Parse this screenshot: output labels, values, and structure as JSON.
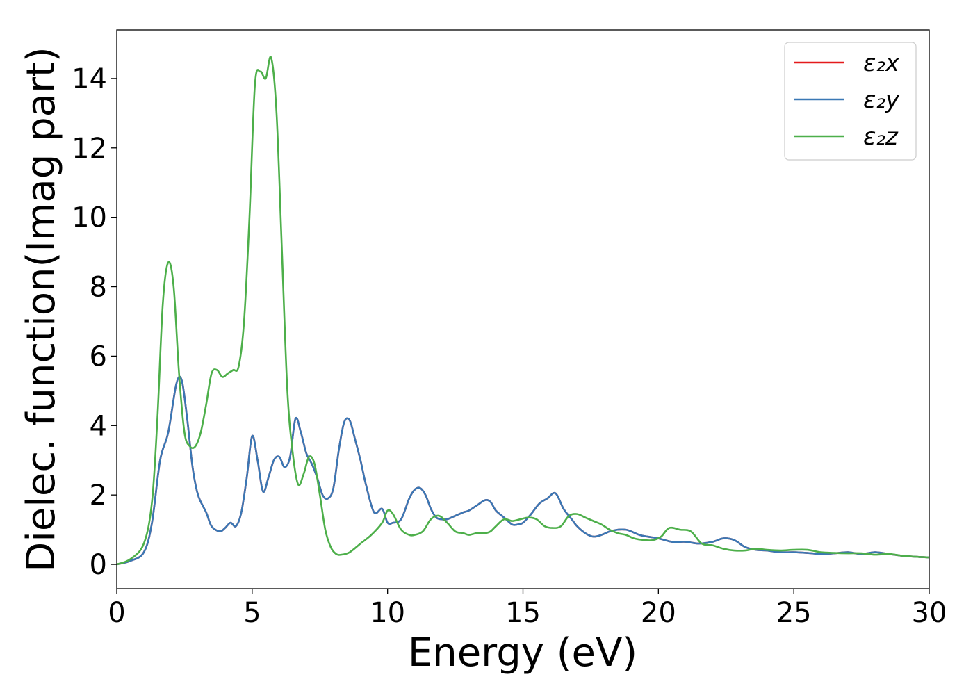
{
  "chart_data": {
    "type": "line",
    "title": "",
    "xlabel": "Energy (eV)",
    "ylabel": "Dielec. function(Imag part)",
    "xlim": [
      0,
      30
    ],
    "ylim": [
      -0.7,
      15.4
    ],
    "xticks": [
      0,
      5,
      10,
      15,
      20,
      25,
      30
    ],
    "yticks": [
      0,
      2,
      4,
      6,
      8,
      10,
      12,
      14
    ],
    "grid": false,
    "legend_position": "top-right",
    "series": [
      {
        "name": "ε₂x",
        "color": "#e41a1c",
        "x": [
          0,
          0.5,
          1.0,
          1.3,
          1.6,
          1.9,
          2.2,
          2.4,
          2.6,
          2.8,
          3.0,
          3.3,
          3.5,
          3.8,
          4.0,
          4.2,
          4.4,
          4.6,
          4.8,
          5.0,
          5.2,
          5.4,
          5.6,
          5.8,
          6.0,
          6.2,
          6.4,
          6.6,
          6.8,
          7.0,
          7.2,
          7.4,
          7.6,
          7.8,
          8.0,
          8.2,
          8.4,
          8.6,
          8.8,
          9.0,
          9.2,
          9.5,
          9.8,
          10.0,
          10.2,
          10.5,
          10.8,
          11.0,
          11.2,
          11.4,
          11.6,
          11.8,
          12.0,
          12.2,
          12.5,
          12.8,
          13.0,
          13.3,
          13.6,
          13.8,
          14.0,
          14.3,
          14.6,
          14.8,
          15.0,
          15.3,
          15.6,
          15.9,
          16.2,
          16.5,
          16.8,
          17.0,
          17.3,
          17.6,
          17.9,
          18.2,
          18.5,
          18.8,
          19.0,
          19.3,
          19.6,
          20.0,
          20.5,
          21.0,
          21.5,
          22.0,
          22.4,
          22.8,
          23.2,
          23.6,
          24.0,
          24.5,
          25.0,
          25.5,
          26.0,
          26.5,
          27.0,
          27.5,
          28.0,
          28.5,
          29.0,
          29.5,
          30.0
        ],
        "y": [
          0,
          0.1,
          0.35,
          1.2,
          3.0,
          3.8,
          5.2,
          5.3,
          4.2,
          2.8,
          2.0,
          1.5,
          1.1,
          0.95,
          1.05,
          1.2,
          1.1,
          1.5,
          2.5,
          3.7,
          3.0,
          2.1,
          2.5,
          3.0,
          3.1,
          2.8,
          3.1,
          4.2,
          3.8,
          3.2,
          2.9,
          2.5,
          2.0,
          1.9,
          2.2,
          3.3,
          4.1,
          4.15,
          3.6,
          3.0,
          2.3,
          1.5,
          1.6,
          1.2,
          1.2,
          1.3,
          1.9,
          2.15,
          2.2,
          2.0,
          1.6,
          1.35,
          1.3,
          1.3,
          1.4,
          1.5,
          1.55,
          1.7,
          1.85,
          1.8,
          1.55,
          1.35,
          1.15,
          1.15,
          1.2,
          1.45,
          1.75,
          1.9,
          2.05,
          1.6,
          1.3,
          1.1,
          0.9,
          0.8,
          0.85,
          0.95,
          1.0,
          1.0,
          0.95,
          0.85,
          0.8,
          0.75,
          0.65,
          0.65,
          0.6,
          0.65,
          0.75,
          0.7,
          0.5,
          0.42,
          0.4,
          0.35,
          0.35,
          0.33,
          0.3,
          0.32,
          0.35,
          0.3,
          0.35,
          0.3,
          0.25,
          0.22,
          0.2
        ]
      },
      {
        "name": "ε₂y",
        "color": "#3a78b5",
        "x": [
          0,
          0.5,
          1.0,
          1.3,
          1.6,
          1.9,
          2.2,
          2.4,
          2.6,
          2.8,
          3.0,
          3.3,
          3.5,
          3.8,
          4.0,
          4.2,
          4.4,
          4.6,
          4.8,
          5.0,
          5.2,
          5.4,
          5.6,
          5.8,
          6.0,
          6.2,
          6.4,
          6.6,
          6.8,
          7.0,
          7.2,
          7.4,
          7.6,
          7.8,
          8.0,
          8.2,
          8.4,
          8.6,
          8.8,
          9.0,
          9.2,
          9.5,
          9.8,
          10.0,
          10.2,
          10.5,
          10.8,
          11.0,
          11.2,
          11.4,
          11.6,
          11.8,
          12.0,
          12.2,
          12.5,
          12.8,
          13.0,
          13.3,
          13.6,
          13.8,
          14.0,
          14.3,
          14.6,
          14.8,
          15.0,
          15.3,
          15.6,
          15.9,
          16.2,
          16.5,
          16.8,
          17.0,
          17.3,
          17.6,
          17.9,
          18.2,
          18.5,
          18.8,
          19.0,
          19.3,
          19.6,
          20.0,
          20.5,
          21.0,
          21.5,
          22.0,
          22.4,
          22.8,
          23.2,
          23.6,
          24.0,
          24.5,
          25.0,
          25.5,
          26.0,
          26.5,
          27.0,
          27.5,
          28.0,
          28.5,
          29.0,
          29.5,
          30.0
        ],
        "y": [
          0,
          0.1,
          0.35,
          1.2,
          3.0,
          3.8,
          5.2,
          5.3,
          4.2,
          2.8,
          2.0,
          1.5,
          1.1,
          0.95,
          1.05,
          1.2,
          1.1,
          1.5,
          2.5,
          3.7,
          3.0,
          2.1,
          2.5,
          3.0,
          3.1,
          2.8,
          3.1,
          4.2,
          3.8,
          3.2,
          2.9,
          2.5,
          2.0,
          1.9,
          2.2,
          3.3,
          4.1,
          4.15,
          3.6,
          3.0,
          2.3,
          1.5,
          1.6,
          1.2,
          1.2,
          1.3,
          1.9,
          2.15,
          2.2,
          2.0,
          1.6,
          1.35,
          1.3,
          1.3,
          1.4,
          1.5,
          1.55,
          1.7,
          1.85,
          1.8,
          1.55,
          1.35,
          1.15,
          1.15,
          1.2,
          1.45,
          1.75,
          1.9,
          2.05,
          1.6,
          1.3,
          1.1,
          0.9,
          0.8,
          0.85,
          0.95,
          1.0,
          1.0,
          0.95,
          0.85,
          0.8,
          0.75,
          0.65,
          0.65,
          0.6,
          0.65,
          0.75,
          0.7,
          0.5,
          0.42,
          0.4,
          0.35,
          0.35,
          0.33,
          0.3,
          0.32,
          0.35,
          0.3,
          0.35,
          0.3,
          0.25,
          0.22,
          0.2
        ]
      },
      {
        "name": "ε₂z",
        "color": "#4daf4a",
        "x": [
          0,
          0.5,
          1.0,
          1.3,
          1.5,
          1.7,
          1.9,
          2.1,
          2.3,
          2.5,
          2.7,
          2.9,
          3.1,
          3.3,
          3.5,
          3.7,
          3.9,
          4.1,
          4.3,
          4.5,
          4.7,
          4.9,
          5.1,
          5.3,
          5.5,
          5.7,
          5.9,
          6.1,
          6.3,
          6.5,
          6.7,
          6.9,
          7.1,
          7.3,
          7.5,
          7.7,
          7.9,
          8.1,
          8.3,
          8.6,
          9.0,
          9.4,
          9.8,
          10.0,
          10.2,
          10.5,
          10.8,
          11.0,
          11.3,
          11.6,
          11.9,
          12.2,
          12.5,
          12.8,
          13.0,
          13.3,
          13.6,
          13.8,
          14.0,
          14.3,
          14.6,
          14.9,
          15.2,
          15.5,
          15.8,
          16.1,
          16.4,
          16.7,
          17.0,
          17.3,
          17.6,
          17.9,
          18.2,
          18.5,
          18.8,
          19.1,
          19.5,
          19.8,
          20.1,
          20.4,
          20.8,
          21.2,
          21.6,
          22.0,
          22.4,
          22.8,
          23.2,
          23.6,
          24.0,
          24.5,
          25.0,
          25.5,
          26.0,
          26.5,
          27.0,
          27.5,
          28.0,
          28.5,
          29.0,
          29.5,
          30.0
        ],
        "y": [
          0,
          0.15,
          0.6,
          1.8,
          4.2,
          7.5,
          8.7,
          8.0,
          5.5,
          3.8,
          3.4,
          3.4,
          3.8,
          4.6,
          5.5,
          5.6,
          5.4,
          5.5,
          5.6,
          5.7,
          7.0,
          10.0,
          13.8,
          14.2,
          14.0,
          14.6,
          13.0,
          9.0,
          5.0,
          3.2,
          2.3,
          2.6,
          3.1,
          2.9,
          2.0,
          1.0,
          0.5,
          0.3,
          0.28,
          0.35,
          0.6,
          0.85,
          1.2,
          1.55,
          1.45,
          1.0,
          0.85,
          0.85,
          0.95,
          1.3,
          1.4,
          1.2,
          0.95,
          0.9,
          0.85,
          0.9,
          0.9,
          0.95,
          1.1,
          1.3,
          1.25,
          1.3,
          1.35,
          1.3,
          1.1,
          1.05,
          1.1,
          1.4,
          1.45,
          1.35,
          1.25,
          1.15,
          1.0,
          0.9,
          0.85,
          0.75,
          0.7,
          0.7,
          0.8,
          1.05,
          1.0,
          0.95,
          0.6,
          0.55,
          0.45,
          0.4,
          0.4,
          0.45,
          0.42,
          0.4,
          0.42,
          0.42,
          0.35,
          0.33,
          0.32,
          0.32,
          0.28,
          0.3,
          0.25,
          0.22,
          0.2
        ]
      }
    ]
  }
}
